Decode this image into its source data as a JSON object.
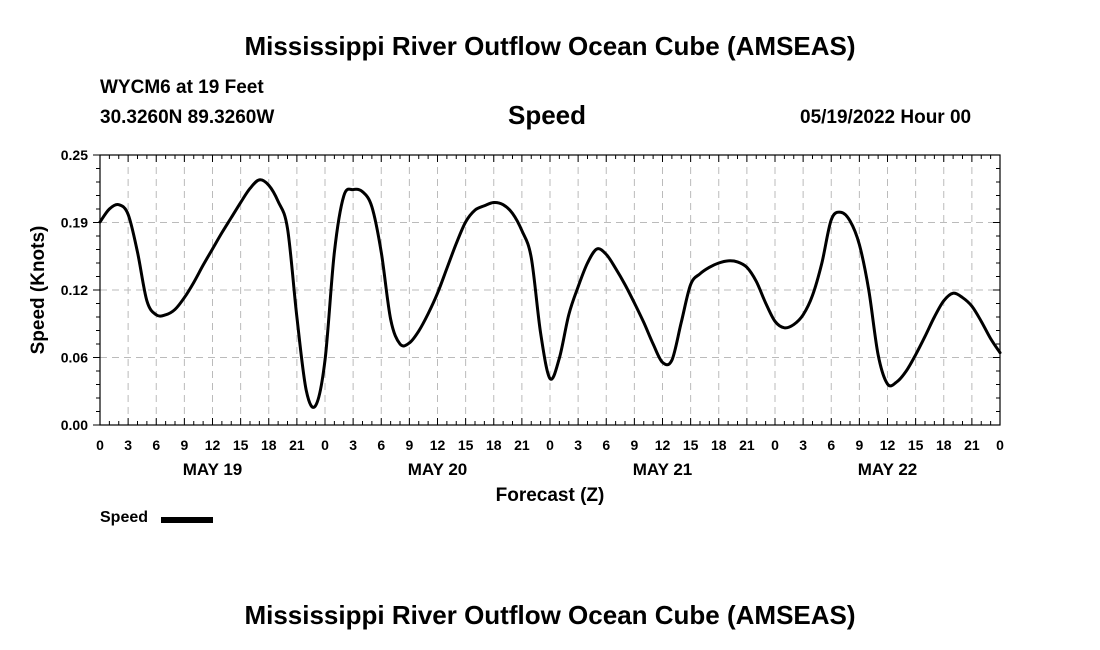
{
  "header": {
    "title": "Mississippi River Outflow Ocean Cube (AMSEAS)",
    "station": "WYCM6 at 19 Feet",
    "coords": "30.3260N  89.3260W",
    "variable": "Speed",
    "datetime": "05/19/2022 Hour 00"
  },
  "footer": {
    "title": "Mississippi River Outflow Ocean Cube (AMSEAS)"
  },
  "legend": {
    "label": "Speed",
    "color": "#000000"
  },
  "chart_data": {
    "type": "line",
    "title": "Speed",
    "xlabel": "Forecast (Z)",
    "ylabel": "Speed (Knots)",
    "ylim": [
      0,
      0.25
    ],
    "xlim": [
      0,
      96
    ],
    "yticks": [
      {
        "value": 0,
        "label": "0.00"
      },
      {
        "value": 0.0625,
        "label": "0.06"
      },
      {
        "value": 0.125,
        "label": "0.12"
      },
      {
        "value": 0.1875,
        "label": "0.19"
      },
      {
        "value": 0.25,
        "label": "0.25"
      }
    ],
    "xtick_labels": [
      "0",
      "3",
      "6",
      "9",
      "12",
      "15",
      "18",
      "21",
      "0",
      "3",
      "6",
      "9",
      "12",
      "15",
      "18",
      "21",
      "0",
      "3",
      "6",
      "9",
      "12",
      "15",
      "18",
      "21",
      "0",
      "3",
      "6",
      "9",
      "12",
      "15",
      "18",
      "21",
      "0"
    ],
    "day_labels": [
      {
        "label": "MAY 19",
        "hour": 12
      },
      {
        "label": "MAY 20",
        "hour": 36
      },
      {
        "label": "MAY 21",
        "hour": 60
      },
      {
        "label": "MAY 22",
        "hour": 84
      }
    ],
    "grid": true,
    "series": [
      {
        "name": "Speed",
        "x": [
          0,
          1,
          2,
          3,
          4,
          5,
          6,
          7,
          8,
          9,
          10,
          11,
          12,
          13,
          14,
          15,
          16,
          17,
          18,
          19,
          20,
          21,
          22,
          23,
          24,
          25,
          26,
          27,
          28,
          29,
          30,
          31,
          32,
          33,
          34,
          35,
          36,
          37,
          38,
          39,
          40,
          41,
          42,
          43,
          44,
          45,
          46,
          47,
          48,
          49,
          50,
          51,
          52,
          53,
          54,
          55,
          56,
          57,
          58,
          59,
          60,
          61,
          62,
          63,
          64,
          65,
          66,
          67,
          68,
          69,
          70,
          71,
          72,
          73,
          74,
          75,
          76,
          77,
          78,
          79,
          80,
          81,
          82,
          83,
          84,
          85,
          86,
          87,
          88,
          89,
          90,
          91,
          92,
          93,
          94,
          95,
          96
        ],
        "values": [
          0.188,
          0.2,
          0.204,
          0.195,
          0.16,
          0.115,
          0.102,
          0.102,
          0.107,
          0.118,
          0.132,
          0.148,
          0.163,
          0.178,
          0.192,
          0.206,
          0.219,
          0.227,
          0.222,
          0.207,
          0.182,
          0.1,
          0.032,
          0.018,
          0.06,
          0.16,
          0.212,
          0.218,
          0.216,
          0.202,
          0.16,
          0.098,
          0.075,
          0.076,
          0.087,
          0.103,
          0.122,
          0.145,
          0.168,
          0.188,
          0.199,
          0.203,
          0.206,
          0.204,
          0.196,
          0.18,
          0.155,
          0.085,
          0.043,
          0.062,
          0.102,
          0.128,
          0.15,
          0.163,
          0.158,
          0.145,
          0.13,
          0.113,
          0.095,
          0.075,
          0.058,
          0.06,
          0.095,
          0.13,
          0.14,
          0.146,
          0.15,
          0.152,
          0.151,
          0.146,
          0.133,
          0.113,
          0.096,
          0.09,
          0.093,
          0.102,
          0.12,
          0.15,
          0.19,
          0.197,
          0.189,
          0.167,
          0.125,
          0.065,
          0.038,
          0.04,
          0.05,
          0.065,
          0.082,
          0.1,
          0.115,
          0.122,
          0.118,
          0.11,
          0.096,
          0.08,
          0.067
        ]
      }
    ]
  }
}
